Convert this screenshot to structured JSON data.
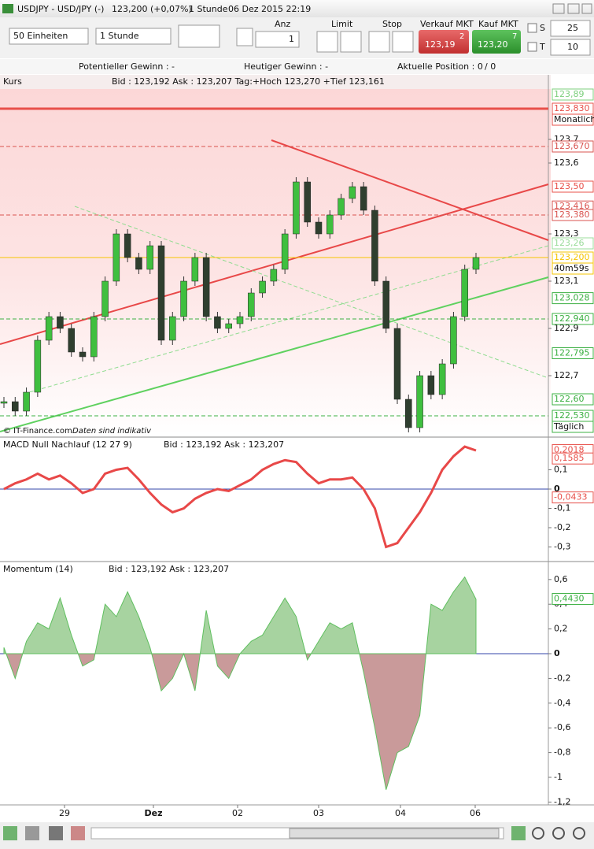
{
  "title_bar": {
    "symbol": "USDJPY - USD/JPY (-)",
    "price": "123,200 (+0,07%)",
    "interval": "1 Stunde",
    "datetime": "06 Dez 2015 22:19"
  },
  "toolbar": {
    "units": "50 Einheiten",
    "interval": "1 Stunde",
    "quantity_label": "Anz",
    "quantity": "1",
    "limit_label": "Limit",
    "stop_label": "Stop",
    "sell_label": "Verkauf MKT",
    "buy_label": "Kauf MKT",
    "sell_price": "123,19",
    "sell_pip": "2",
    "buy_price": "123,20",
    "buy_pip": "7",
    "s_label": "S",
    "s_value": "25",
    "t_label": "T",
    "t_value": "10"
  },
  "info_bar": {
    "potential": "Potentieller Gewinn : -",
    "today": "Heutiger Gewinn : -",
    "position": "Aktuelle Position : 0",
    "position_total": "/ 0"
  },
  "price_panel": {
    "label": "Kurs",
    "quote": "Bid : 123,192 Ask : 123,207 Tag:+Hoch 123,270 +Tief 123,161",
    "ticks": [
      {
        "value": 123.7,
        "label": "123,7"
      },
      {
        "value": 123.6,
        "label": "123,6"
      },
      {
        "value": 123.3,
        "label": "123,3"
      },
      {
        "value": 123.1,
        "label": "123,1"
      },
      {
        "value": 122.9,
        "label": "122,9"
      },
      {
        "value": 122.7,
        "label": "122,7"
      }
    ],
    "levels": [
      {
        "value": 123.89,
        "label": "123,89",
        "color": "#7ccf7c"
      },
      {
        "value": 123.83,
        "label": "123,830",
        "tag": "Monatlich",
        "color": "#e8504a",
        "line": "solid"
      },
      {
        "value": 123.67,
        "label": "123,670",
        "color": "#d9534f",
        "line": "dashed"
      },
      {
        "value": 123.5,
        "label": "123,50",
        "color": "#e8504a"
      },
      {
        "value": 123.416,
        "label": "123,416",
        "color": "#d9534f"
      },
      {
        "value": 123.38,
        "label": "123,380",
        "color": "#d9534f",
        "line": "dashed"
      },
      {
        "value": 123.26,
        "label": "123,26",
        "color": "#9bdc9b"
      },
      {
        "value": 123.2,
        "label": "123,200",
        "tag": "40m59s",
        "color": "#f5c400",
        "line": "solid"
      },
      {
        "value": 123.028,
        "label": "123,028",
        "color": "#3cb043"
      },
      {
        "value": 122.94,
        "label": "122,940",
        "color": "#3cb043",
        "line": "dashed"
      },
      {
        "value": 122.795,
        "label": "122,795",
        "color": "#3cb043"
      },
      {
        "value": 122.6,
        "label": "122,60",
        "color": "#3cb043"
      },
      {
        "value": 122.53,
        "label": "122,530",
        "tag": "Täglich",
        "color": "#3cb043",
        "line": "dashed"
      }
    ],
    "closes": [
      122.59,
      122.55,
      122.63,
      122.85,
      122.95,
      122.9,
      122.8,
      122.78,
      122.95,
      123.1,
      123.3,
      123.2,
      123.15,
      123.25,
      122.85,
      122.95,
      123.1,
      123.2,
      122.95,
      122.9,
      122.92,
      122.95,
      123.05,
      123.1,
      123.15,
      123.3,
      123.52,
      123.35,
      123.3,
      123.38,
      123.45,
      123.5,
      123.4,
      123.1,
      122.9,
      122.6,
      122.48,
      122.7,
      122.62,
      122.75,
      122.95,
      123.15,
      123.2
    ],
    "source": "© IT-Finance.com",
    "note": "Daten sind indikativ"
  },
  "macd_panel": {
    "label": "MACD Null Nachlauf (12 27 9)",
    "quote": "Bid : 123,192 Ask : 123,207",
    "ticks": [
      {
        "value": 0.1,
        "label": "0,1"
      },
      0,
      {
        "value": -0.1,
        "label": "-0,1"
      },
      {
        "value": -0.2,
        "label": "-0,2"
      },
      {
        "value": -0.3,
        "label": "-0,3"
      }
    ],
    "levels": [
      {
        "value": 0.2018,
        "label": "0,2018",
        "color": "#e8504a"
      },
      {
        "value": 0.1585,
        "label": "0,1585",
        "color": "#e8504a"
      },
      {
        "value": -0.0433,
        "label": "-0,0433",
        "color": "#e8504a"
      }
    ],
    "values": [
      0.0,
      0.03,
      0.05,
      0.08,
      0.05,
      0.07,
      0.03,
      -0.02,
      0.0,
      0.08,
      0.1,
      0.11,
      0.05,
      -0.02,
      -0.08,
      -0.12,
      -0.1,
      -0.05,
      -0.02,
      0.0,
      -0.01,
      0.02,
      0.05,
      0.1,
      0.13,
      0.15,
      0.14,
      0.08,
      0.03,
      0.05,
      0.05,
      0.06,
      0.0,
      -0.1,
      -0.3,
      -0.28,
      -0.2,
      -0.12,
      -0.02,
      0.1,
      0.17,
      0.22,
      0.2
    ]
  },
  "momentum_panel": {
    "label": "Momentum (14)",
    "quote": "Bid : 123,192 Ask : 123,207",
    "ticks": [
      {
        "value": 0.6,
        "label": "0,6"
      },
      {
        "value": 0.4,
        "label": "0,4"
      },
      {
        "value": 0.2,
        "label": "0,2"
      },
      0,
      {
        "value": -0.2,
        "label": "-0,2"
      },
      {
        "value": -0.4,
        "label": "-0,4"
      },
      {
        "value": -0.6,
        "label": "-0,6"
      },
      {
        "value": -0.8,
        "label": "-0,8"
      },
      -1,
      {
        "value": -1.2,
        "label": "-1,2"
      }
    ],
    "levels": [
      {
        "value": 0.443,
        "label": "0,4430",
        "color": "#3cb043"
      }
    ],
    "values": [
      0.05,
      -0.2,
      0.1,
      0.25,
      0.2,
      0.45,
      0.15,
      -0.1,
      -0.05,
      0.4,
      0.3,
      0.5,
      0.3,
      0.05,
      -0.3,
      -0.2,
      0.0,
      -0.3,
      0.35,
      -0.1,
      -0.2,
      0.0,
      0.1,
      0.15,
      0.3,
      0.45,
      0.3,
      -0.05,
      0.1,
      0.25,
      0.2,
      0.25,
      -0.15,
      -0.6,
      -1.1,
      -0.8,
      -0.75,
      -0.5,
      0.4,
      0.35,
      0.5,
      0.62,
      0.44
    ]
  },
  "x_axis": [
    "29",
    "Dez",
    "02",
    "03",
    "04",
    "06"
  ]
}
